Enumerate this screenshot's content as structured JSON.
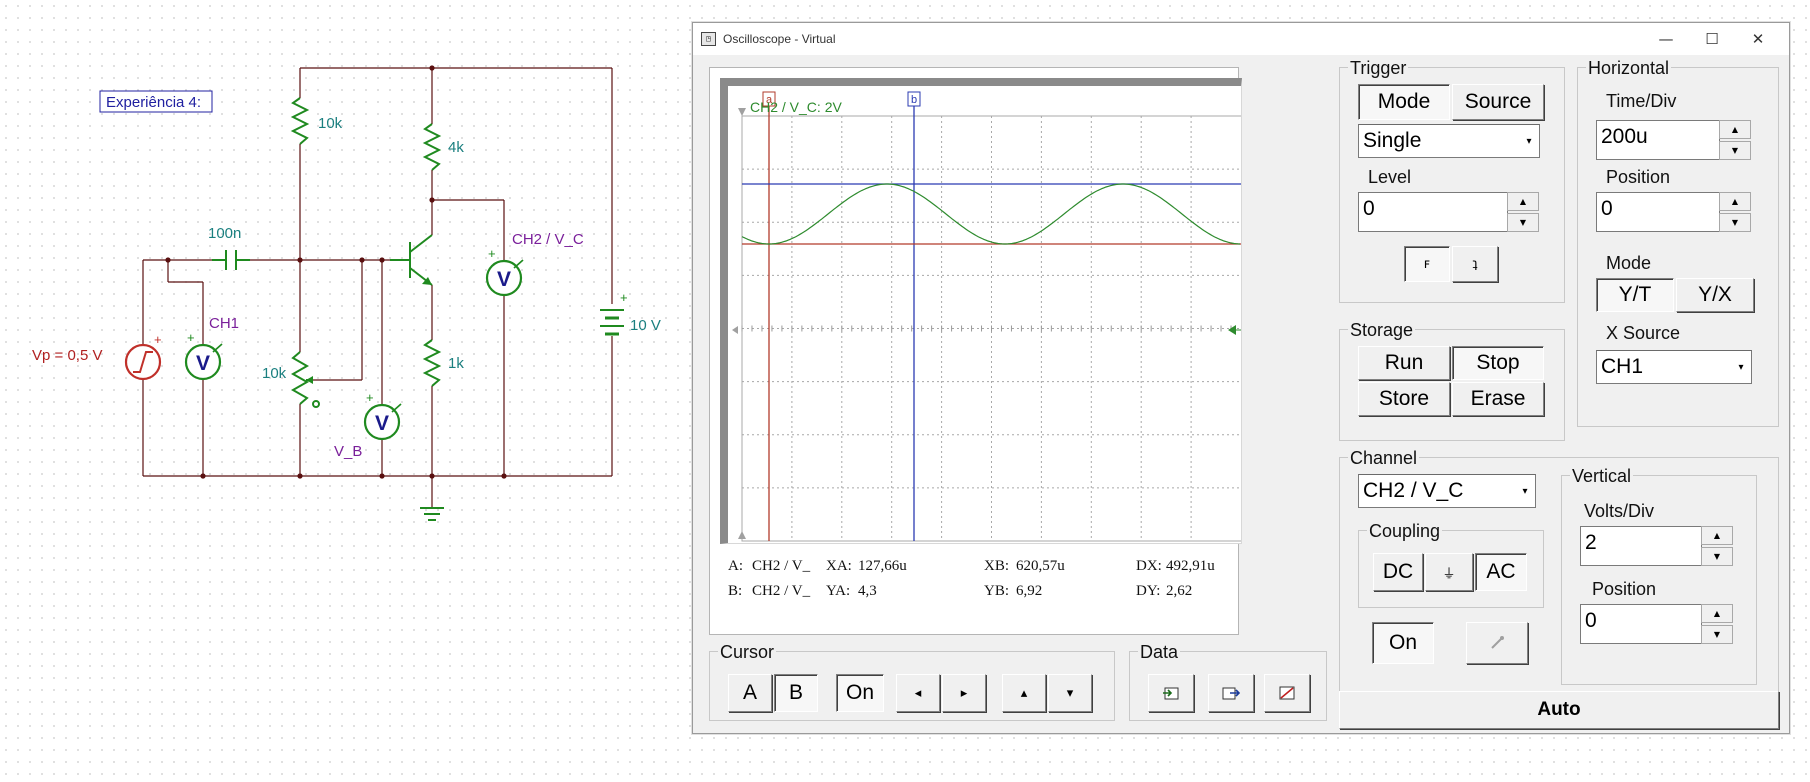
{
  "schematic": {
    "experiment_label": "Experiência 4:",
    "source_label": "Vp = 0,5 V",
    "meter_ch1_label": "CH1",
    "meter_vb_label": "V_B",
    "meter_vc_label": "CH2 / V_C",
    "meter_symbol": "V",
    "capacitor_label": "100n",
    "r_top_label": "10k",
    "r_pot_label": "10k",
    "r_collector_label": "4k",
    "r_emitter_label": "1k",
    "battery_label": "10 V",
    "plus": "+"
  },
  "window": {
    "title": "Oscilloscope - Virtual",
    "icon": "oscilloscope-icon",
    "controls": {
      "minimize": "—",
      "maximize": "☐",
      "close": "✕"
    }
  },
  "screen": {
    "channel_label": "CH2 / V_C: 2V",
    "cursor_a_flag": "a",
    "cursor_b_flag": "b",
    "readout": {
      "a_label": "A:",
      "a_channel": "CH2 / V_",
      "b_label": "B:",
      "b_channel": "CH2 / V_",
      "xa_label": "XA:",
      "xa": "127,66u",
      "ya_label": "YA:",
      "ya": "4,3",
      "xb_label": "XB:",
      "xb": "620,57u",
      "yb_label": "YB:",
      "yb": "6,92",
      "dx_label": "DX:",
      "dx": "492,91u",
      "dy_label": "DY:",
      "dy": "2,62"
    }
  },
  "trigger": {
    "title": "Trigger",
    "mode_label": "Mode",
    "source_label": "Source",
    "mode_value": "Single",
    "level_label": "Level",
    "level_value": "0",
    "rising_symbol": "ꜰ",
    "falling_symbol": "ʇ"
  },
  "horizontal": {
    "title": "Horizontal",
    "time_div_label": "Time/Div",
    "time_div_value": "200u",
    "position_label": "Position",
    "position_value": "0",
    "mode_label": "Mode",
    "yt_label": "Y/T",
    "yx_label": "Y/X",
    "x_source_label": "X Source",
    "x_source_value": "CH1"
  },
  "storage": {
    "title": "Storage",
    "run": "Run",
    "stop": "Stop",
    "store": "Store",
    "erase": "Erase"
  },
  "channel": {
    "title": "Channel",
    "value": "CH2 / V_C",
    "coupling_title": "Coupling",
    "dc": "DC",
    "gnd": "⏚",
    "ac": "AC",
    "on": "On",
    "probe_icon": "probe-icon"
  },
  "vertical": {
    "title": "Vertical",
    "volts_div_label": "Volts/Div",
    "volts_div_value": "2",
    "position_label": "Position",
    "position_value": "0"
  },
  "cursor": {
    "title": "Cursor",
    "a": "A",
    "b": "B",
    "on": "On",
    "left": "◂",
    "right": "▸",
    "up": "▴",
    "down": "▾"
  },
  "data": {
    "title": "Data",
    "import_icon": "import-icon",
    "export_icon": "export-icon",
    "clear_icon": "clear-icon"
  },
  "auto_label": "Auto",
  "colors": {
    "trace_ch2": "#2e8b2e",
    "cursor_a": "#b23b2b",
    "cursor_b": "#2b3bb2",
    "component_green": "#1f8a1f",
    "label_teal": "#1a7f7f",
    "label_purple": "#7a1f9a",
    "source_red": "#c0302a",
    "meter_navy": "#1a1a8a"
  }
}
